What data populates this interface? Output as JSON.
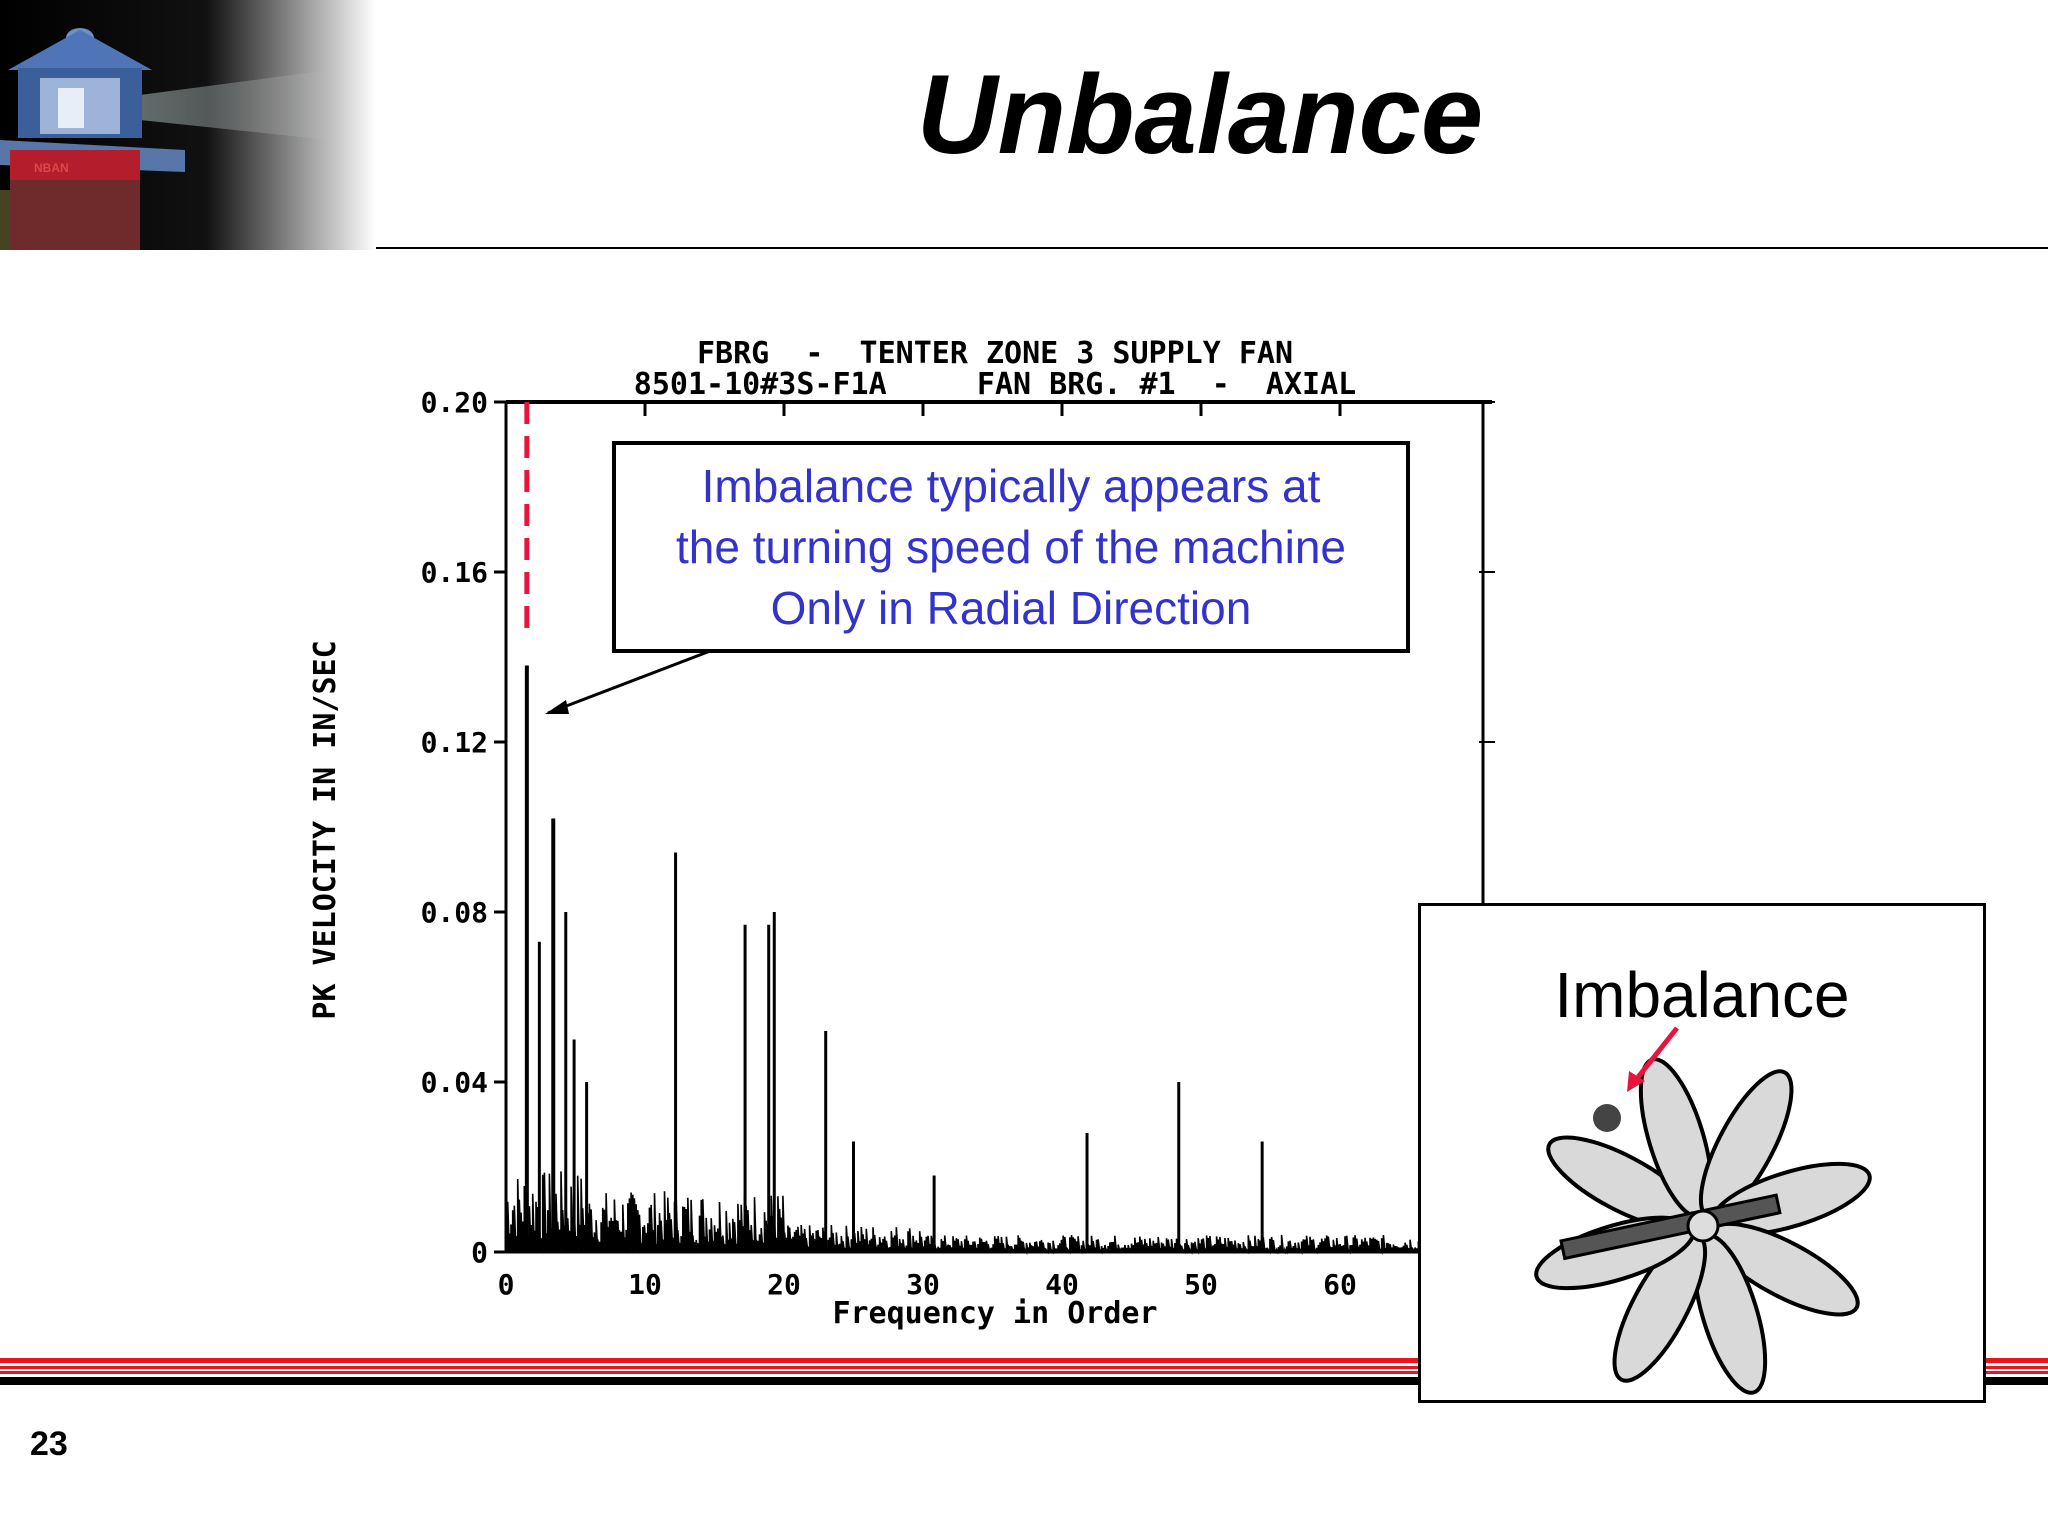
{
  "slide": {
    "title": "Unbalance",
    "number": "23"
  },
  "logo": {
    "badge_text": "NBAN"
  },
  "callout": {
    "lines": [
      "Imbalance typically appears at",
      "the turning speed of the machine",
      "Only in Radial Direction"
    ]
  },
  "inset": {
    "label": "Imbalance"
  },
  "colors": {
    "callout_text": "#3333cc",
    "marker": "#e8143c",
    "footer_red": "#e8141e",
    "spectrum": "#000000"
  },
  "chart_data": {
    "type": "line",
    "title": "FBRG  -  TENTER ZONE 3 SUPPLY FAN",
    "subtitle": "8501-10#3S-F1A     FAN BRG. #1  -  AXIAL",
    "xlabel": "Frequency in Order",
    "ylabel": "PK VELOCITY IN IN/SEC",
    "xlim": [
      0,
      70
    ],
    "ylim": [
      0,
      0.2
    ],
    "x_ticks": [
      "0",
      "10",
      "20",
      "30",
      "40",
      "50",
      "60"
    ],
    "y_ticks": [
      "0",
      "0.04",
      "0.08",
      "0.12",
      "0.16",
      "0.20"
    ],
    "marker_x": 1.5,
    "peaks": [
      {
        "x": 1.5,
        "y": 0.138
      },
      {
        "x": 2.4,
        "y": 0.073
      },
      {
        "x": 3.4,
        "y": 0.102
      },
      {
        "x": 4.3,
        "y": 0.08
      },
      {
        "x": 4.9,
        "y": 0.05
      },
      {
        "x": 5.8,
        "y": 0.04
      },
      {
        "x": 12.2,
        "y": 0.094
      },
      {
        "x": 17.2,
        "y": 0.077
      },
      {
        "x": 18.9,
        "y": 0.077
      },
      {
        "x": 19.3,
        "y": 0.08
      },
      {
        "x": 23.0,
        "y": 0.052
      },
      {
        "x": 25.0,
        "y": 0.026
      },
      {
        "x": 30.8,
        "y": 0.018
      },
      {
        "x": 41.8,
        "y": 0.028
      },
      {
        "x": 48.4,
        "y": 0.04
      },
      {
        "x": 54.4,
        "y": 0.026
      }
    ]
  }
}
